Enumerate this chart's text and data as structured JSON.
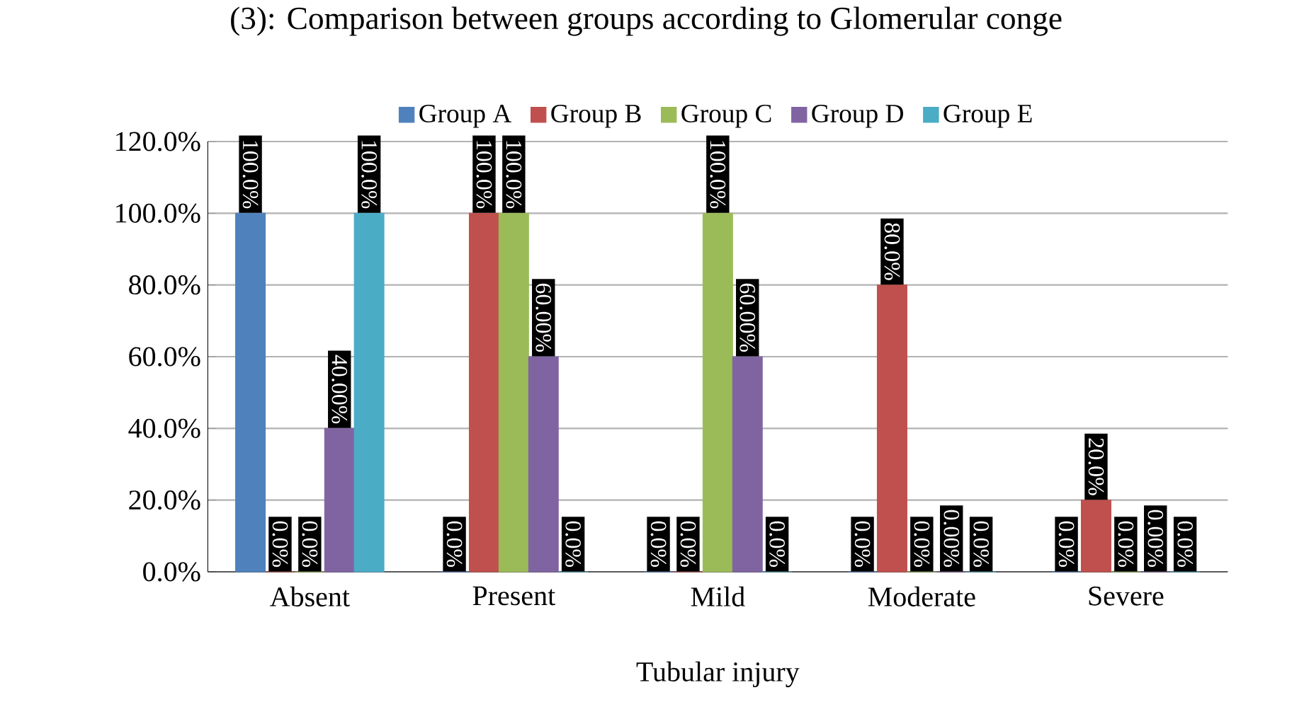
{
  "chart_data": {
    "type": "bar",
    "title": "(3): Comparison between groups according to Glomerular conge",
    "xlabel": "Tubular injury",
    "categories": [
      "Absent",
      "Present",
      "Mild",
      "Moderate",
      "Severe"
    ],
    "series": [
      {
        "name": "Group A",
        "color": "#4f81bd",
        "values": [
          100,
          0,
          0,
          0,
          0
        ],
        "value_labels": [
          "100.0%",
          "0.0%",
          "0.0%",
          "0.0%",
          "0.0%"
        ]
      },
      {
        "name": "Group B",
        "color": "#c0504d",
        "values": [
          0,
          100,
          0,
          80,
          20
        ],
        "value_labels": [
          "0.0%",
          "100.0%",
          "0.0%",
          "80.0%",
          "20.0%"
        ]
      },
      {
        "name": "Group C",
        "color": "#9bbb59",
        "values": [
          0,
          100,
          100,
          0,
          0
        ],
        "value_labels": [
          "0.0%",
          "100.0%",
          "100.0%",
          "0.0%",
          "0.0%"
        ]
      },
      {
        "name": "Group D",
        "color": "#8064a2",
        "values": [
          40,
          60,
          60,
          0,
          0
        ],
        "value_labels": [
          "40.00%",
          "60.00%",
          "60.00%",
          "0.00%",
          "0.00%"
        ]
      },
      {
        "name": "Group E",
        "color": "#4bacc6",
        "values": [
          100,
          0,
          0,
          0,
          0
        ],
        "value_labels": [
          "100.0%",
          "0.0%",
          "0.0%",
          "0.0%",
          "0.0%"
        ]
      }
    ],
    "ylim": [
      0,
      120
    ],
    "yticks": [
      {
        "value": 0,
        "label": "0.0%"
      },
      {
        "value": 20,
        "label": "20.0%"
      },
      {
        "value": 40,
        "label": "40.0%"
      },
      {
        "value": 60,
        "label": "60.0%"
      },
      {
        "value": 80,
        "label": "80.0%"
      },
      {
        "value": 100,
        "label": "100.0%"
      },
      {
        "value": 120,
        "label": "120.0%"
      }
    ],
    "grid": "y",
    "legend": "top"
  }
}
